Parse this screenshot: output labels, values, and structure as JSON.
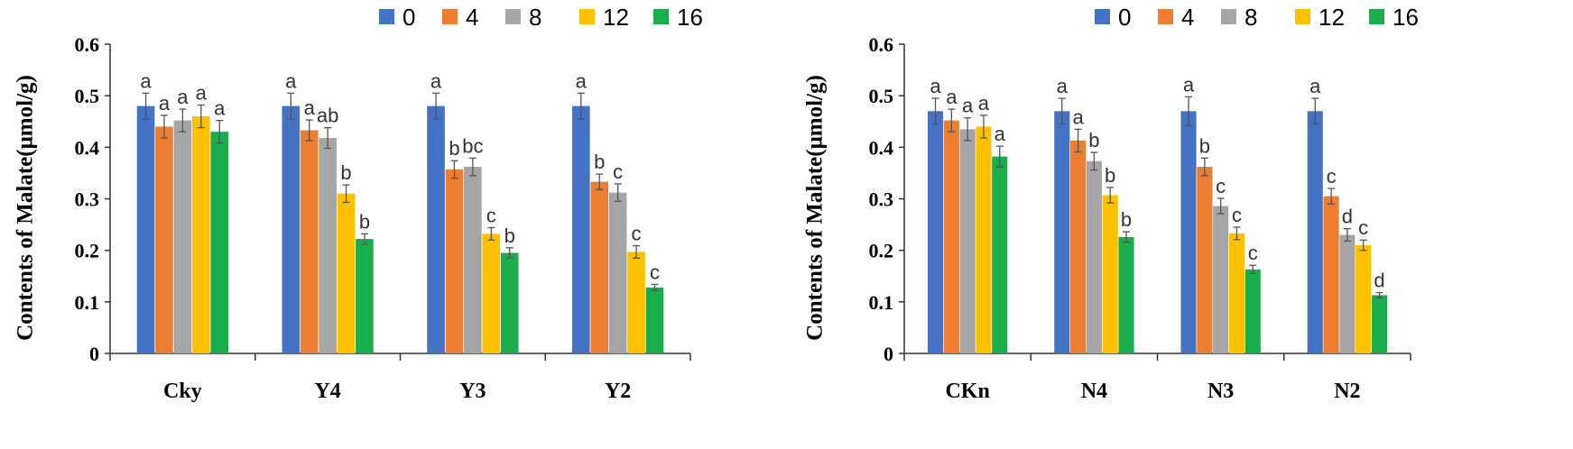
{
  "colors": {
    "0": "#4472C4",
    "4": "#ED7D31",
    "8": "#A5A5A5",
    "12": "#FFC000",
    "16": "#19AD4B"
  },
  "chart_data": [
    {
      "type": "bar",
      "ylabel": "Contents of Malate(μmol/g)",
      "ylim": [
        0,
        0.6
      ],
      "yticks": [
        "0",
        "0.1",
        "0.2",
        "0.3",
        "0.4",
        "0.5",
        "0.6"
      ],
      "legend": {
        "position": "top-right",
        "entries": [
          "0",
          "4",
          "8",
          "12",
          "16"
        ]
      },
      "categories": [
        "Cky",
        "Y4",
        "Y3",
        "Y2"
      ],
      "series": [
        {
          "name": "0",
          "values": [
            0.48,
            0.48,
            0.48,
            0.48
          ],
          "errors": [
            0.025,
            0.025,
            0.025,
            0.025
          ],
          "letters": [
            "a",
            "a",
            "a",
            "a"
          ]
        },
        {
          "name": "4",
          "values": [
            0.44,
            0.433,
            0.357,
            0.333
          ],
          "errors": [
            0.022,
            0.02,
            0.017,
            0.015
          ],
          "letters": [
            "a",
            "a",
            "b",
            "b"
          ]
        },
        {
          "name": "8",
          "values": [
            0.452,
            0.418,
            0.362,
            0.312
          ],
          "errors": [
            0.022,
            0.02,
            0.017,
            0.017
          ],
          "letters": [
            "a",
            "ab",
            "bc",
            "c"
          ]
        },
        {
          "name": "12",
          "values": [
            0.46,
            0.31,
            0.232,
            0.197
          ],
          "errors": [
            0.022,
            0.017,
            0.012,
            0.012
          ],
          "letters": [
            "a",
            "b",
            "c",
            "c"
          ]
        },
        {
          "name": "16",
          "values": [
            0.43,
            0.222,
            0.195,
            0.128
          ],
          "errors": [
            0.022,
            0.01,
            0.01,
            0.006
          ],
          "letters": [
            "a",
            "b",
            "b",
            "c"
          ]
        }
      ]
    },
    {
      "type": "bar",
      "ylabel": "Contents of Malate(μmol/g)",
      "ylim": [
        0,
        0.6
      ],
      "yticks": [
        "0",
        "0.1",
        "0.2",
        "0.3",
        "0.4",
        "0.5",
        "0.6"
      ],
      "legend": {
        "position": "top-right",
        "entries": [
          "0",
          "4",
          "8",
          "12",
          "16"
        ]
      },
      "categories": [
        "CKn",
        "N4",
        "N3",
        "N2"
      ],
      "series": [
        {
          "name": "0",
          "values": [
            0.47,
            0.47,
            0.47,
            0.47
          ],
          "errors": [
            0.025,
            0.025,
            0.028,
            0.025
          ],
          "letters": [
            "a",
            "a",
            "a",
            "a"
          ]
        },
        {
          "name": "4",
          "values": [
            0.452,
            0.413,
            0.362,
            0.305
          ],
          "errors": [
            0.022,
            0.022,
            0.017,
            0.015
          ],
          "letters": [
            "a",
            "a",
            "b",
            "c"
          ]
        },
        {
          "name": "8",
          "values": [
            0.435,
            0.373,
            0.286,
            0.23
          ],
          "errors": [
            0.022,
            0.017,
            0.015,
            0.012
          ],
          "letters": [
            "a",
            "b",
            "c",
            "d"
          ]
        },
        {
          "name": "12",
          "values": [
            0.44,
            0.307,
            0.233,
            0.21
          ],
          "errors": [
            0.022,
            0.015,
            0.012,
            0.01
          ],
          "letters": [
            "a",
            "b",
            "c",
            "c"
          ]
        },
        {
          "name": "16",
          "values": [
            0.382,
            0.226,
            0.163,
            0.113
          ],
          "errors": [
            0.02,
            0.01,
            0.008,
            0.005
          ],
          "letters": [
            "a",
            "b",
            "c",
            "d"
          ]
        }
      ]
    }
  ]
}
